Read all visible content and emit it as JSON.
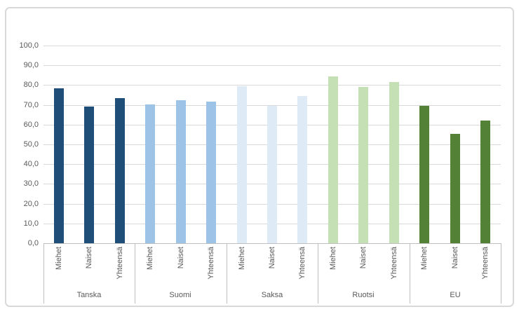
{
  "chart_data": {
    "type": "bar",
    "title": "",
    "categories": [
      "Tanska",
      "Suomi",
      "Saksa",
      "Ruotsi",
      "EU"
    ],
    "sub_categories": [
      "Miehet",
      "Naiset",
      "Yhteensä"
    ],
    "series": [
      {
        "name": "Tanska",
        "color": "#1F4E79",
        "values": [
          78.3,
          69.1,
          73.5
        ]
      },
      {
        "name": "Suomi",
        "color": "#9DC3E6",
        "values": [
          70.3,
          72.4,
          71.5
        ]
      },
      {
        "name": "Saksa",
        "color": "#DEEBF7",
        "values": [
          79.4,
          69.6,
          74.6
        ]
      },
      {
        "name": "Ruotsi",
        "color": "#C5E0B4",
        "values": [
          84.4,
          79.0,
          81.7
        ]
      },
      {
        "name": "EU",
        "color": "#538135",
        "values": [
          69.4,
          55.3,
          62.0
        ]
      }
    ],
    "y_axis": {
      "tick_labels": [
        "100,0",
        "90,0",
        "80,0",
        "70,0",
        "60,0",
        "50,0",
        "40,0",
        "30,0",
        "20,0",
        "10,0",
        "0,0"
      ],
      "min": 0,
      "max": 100,
      "step": 10
    },
    "xlabel": "",
    "ylabel": "",
    "grid": true,
    "legend": false
  },
  "colors": {
    "background": "#FFFFFF",
    "frame_border": "#D9D9D9",
    "gridline": "#D9D9D9",
    "axis_line": "#BFBFBF",
    "separator": "#BFBFBF",
    "tick_text": "#595959"
  }
}
